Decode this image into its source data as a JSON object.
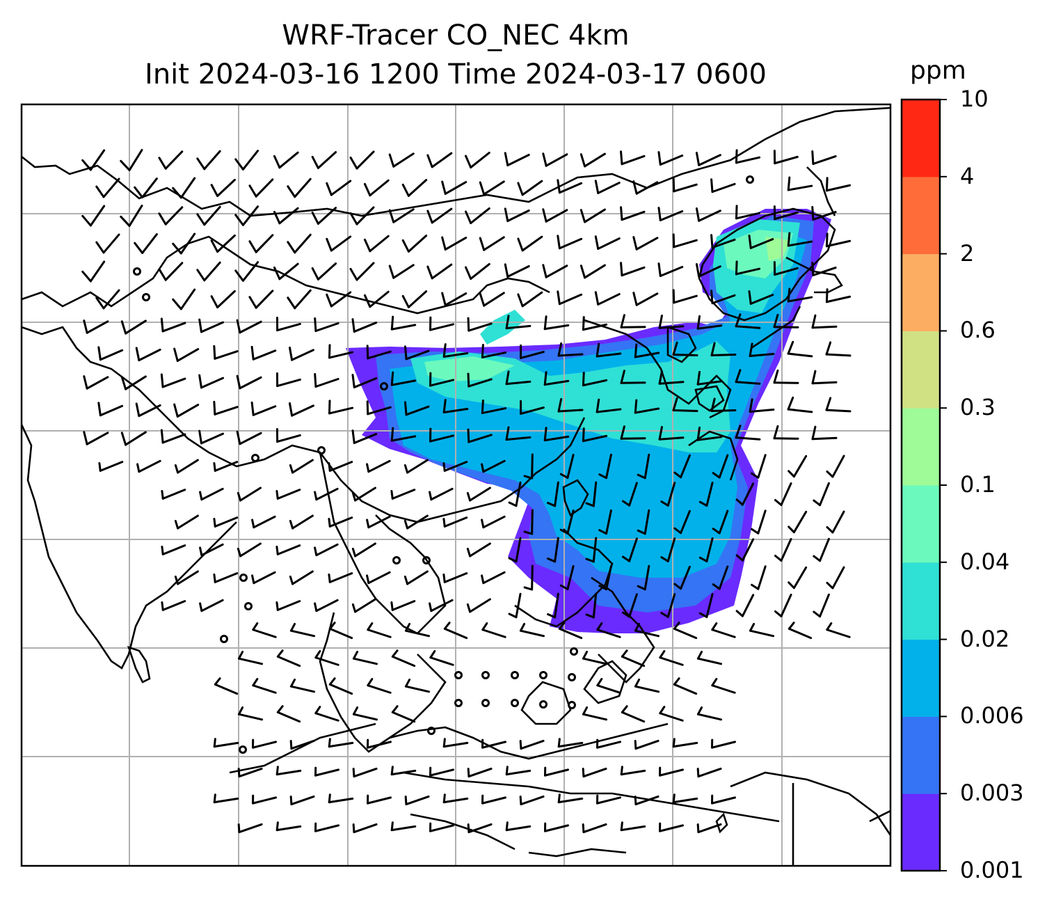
{
  "title_line1": "WRF-Tracer CO_NEC 4km",
  "title_line2": "Init 2024-03-16 1200 Time 2024-03-17 0600",
  "colorbar": {
    "unit": "ppm",
    "ticks": [
      "0.001",
      "0.003",
      "0.006",
      "0.02",
      "0.04",
      "0.1",
      "0.3",
      "0.6",
      "2",
      "4",
      "10"
    ],
    "colors": [
      "#6a2bff",
      "#3574f4",
      "#03b1ea",
      "#2fe0d5",
      "#6cf9be",
      "#9efb98",
      "#d0e184",
      "#fdad62",
      "#ff6c3a",
      "#ff2814"
    ]
  },
  "map": {
    "gridlines": true,
    "grid_color": "#b0b0b0",
    "coastline_color": "#000000",
    "wind": "barbs"
  }
}
